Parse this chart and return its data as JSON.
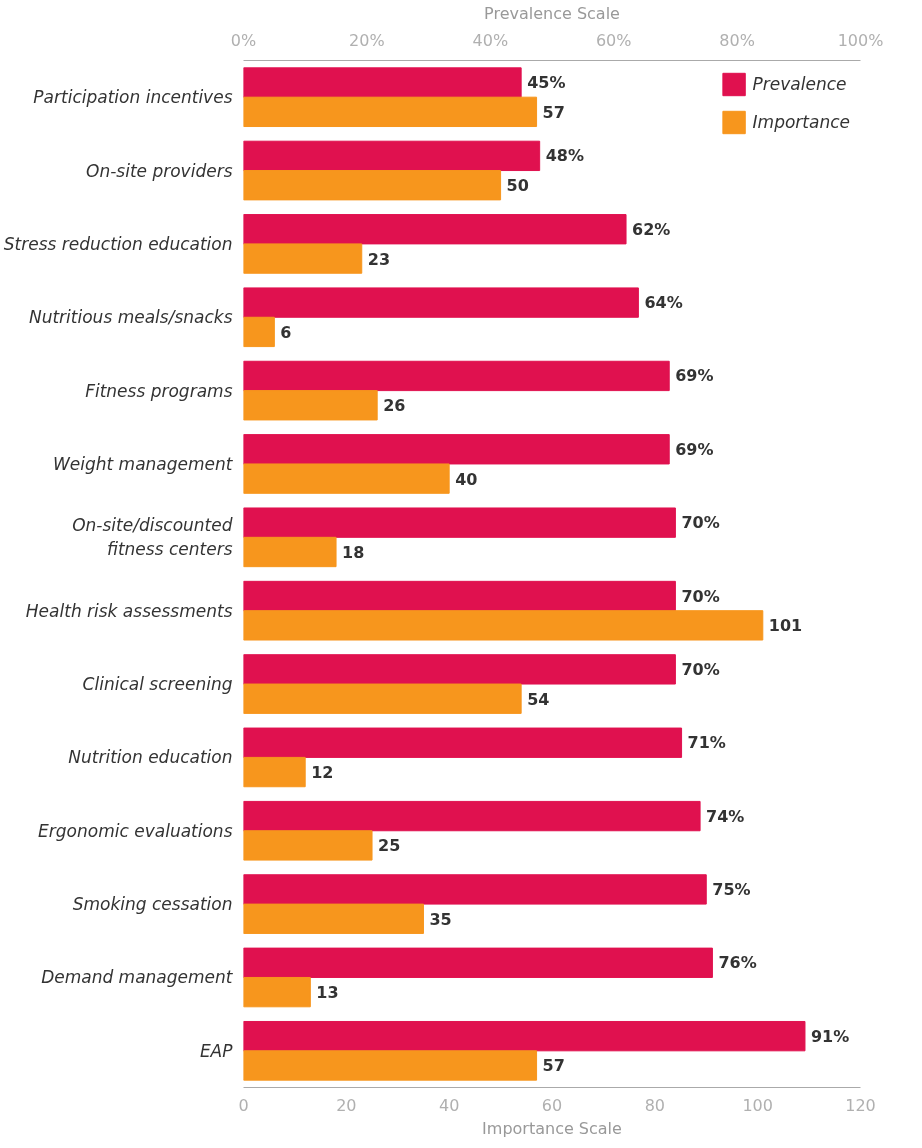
{
  "chart_data": {
    "type": "bar",
    "orientation": "horizontal",
    "categories": [
      "Participation incentives",
      "On-site providers",
      "Stress reduction education",
      "Nutritious meals/snacks",
      "Fitness programs",
      "Weight management",
      "On-site/discounted fitness centers",
      "Health risk assessments",
      "Clinical screening",
      "Nutrition education",
      "Ergonomic evaluations",
      "Smoking cessation",
      "Demand management",
      "EAP"
    ],
    "series": [
      {
        "name": "Prevalence",
        "color": "#e0114f",
        "axis": "x2",
        "values": [
          45,
          48,
          62,
          64,
          69,
          69,
          70,
          70,
          70,
          71,
          74,
          75,
          76,
          91
        ],
        "value_labels": [
          "45%",
          "48%",
          "62%",
          "64%",
          "69%",
          "69%",
          "70%",
          "70%",
          "70%",
          "71%",
          "74%",
          "75%",
          "76%",
          "91%"
        ]
      },
      {
        "name": "Importance",
        "color": "#f7961d",
        "values": [
          57,
          50,
          23,
          6,
          26,
          40,
          18,
          101,
          54,
          12,
          25,
          35,
          13,
          57
        ],
        "value_labels": [
          "57",
          "50",
          "23",
          "6",
          "26",
          "40",
          "18",
          "101",
          "54",
          "12",
          "25",
          "35",
          "13",
          "57"
        ]
      }
    ],
    "xlabel": "Importance Scale",
    "xlim": [
      0,
      120
    ],
    "xticks": [
      0,
      20,
      40,
      60,
      80,
      100,
      120
    ],
    "x2label": "Prevalence Scale",
    "x2lim": [
      0,
      100
    ],
    "x2ticks": [
      {
        "value": 0,
        "label": "0%"
      },
      {
        "value": 20,
        "label": "20%"
      },
      {
        "value": 40,
        "label": "40%"
      },
      {
        "value": 60,
        "label": "60%"
      },
      {
        "value": 80,
        "label": "80%"
      },
      {
        "value": 100,
        "label": "100%"
      }
    ],
    "legend": "top right",
    "grid": false
  }
}
